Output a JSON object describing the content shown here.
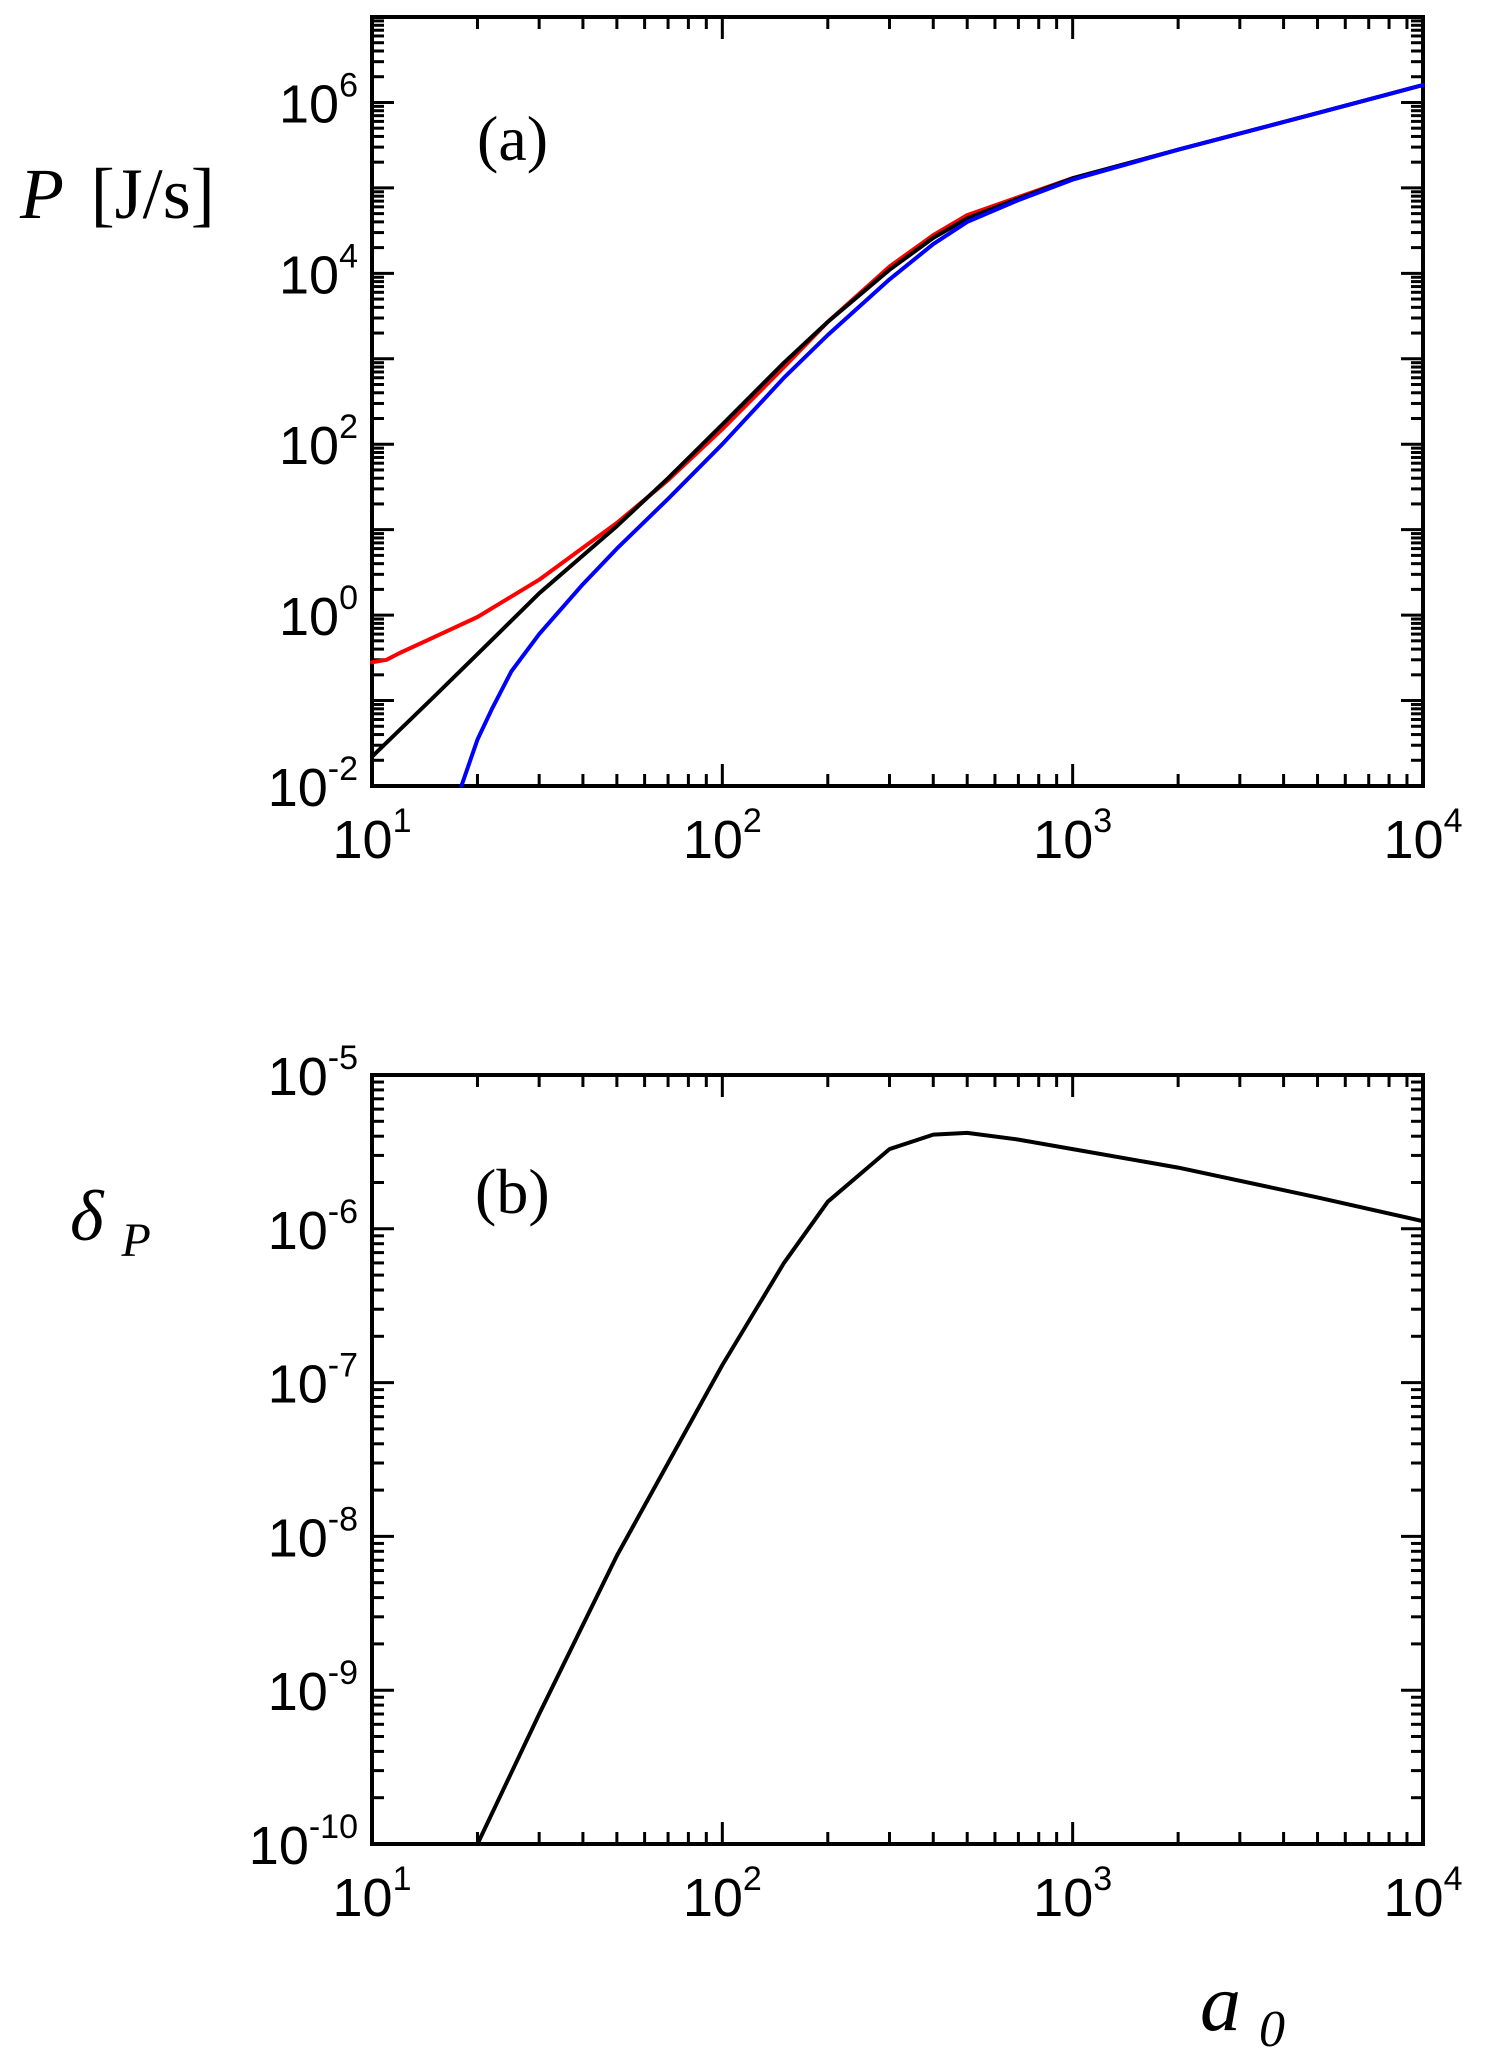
{
  "chart_data": [
    {
      "type": "line",
      "panel_label": "(a)",
      "ylabel": {
        "symbol": "P",
        "unit": "[J/s]"
      },
      "xlabel": "",
      "xscale": "log",
      "yscale": "log",
      "xlim": [
        10,
        10000
      ],
      "ylim": [
        0.01,
        10000000
      ],
      "x_ticks": [
        {
          "base": "10",
          "exp": "1"
        },
        {
          "base": "10",
          "exp": "2"
        },
        {
          "base": "10",
          "exp": "3"
        },
        {
          "base": "10",
          "exp": "4"
        }
      ],
      "y_ticks": [
        {
          "base": "10",
          "exp": "-2"
        },
        {
          "base": "10",
          "exp": "0"
        },
        {
          "base": "10",
          "exp": "2"
        },
        {
          "base": "10",
          "exp": "4"
        },
        {
          "base": "10",
          "exp": "6"
        }
      ],
      "series": [
        {
          "color": "#ff0000",
          "points": [
            [
              10,
              0.28
            ],
            [
              11,
              0.3
            ],
            [
              12,
              0.36
            ],
            [
              15,
              0.55
            ],
            [
              20,
              0.95
            ],
            [
              30,
              2.6
            ],
            [
              50,
              12
            ],
            [
              70,
              38
            ],
            [
              100,
              150
            ],
            [
              150,
              800
            ],
            [
              200,
              2700
            ],
            [
              300,
              12000
            ],
            [
              400,
              28000
            ],
            [
              500,
              48000
            ],
            [
              700,
              78000
            ],
            [
              1000,
              130000
            ],
            [
              2000,
              280000
            ],
            [
              5000,
              750000
            ],
            [
              10000,
              1600000
            ]
          ]
        },
        {
          "color": "#000000",
          "points": [
            [
              10,
              0.022
            ],
            [
              15,
              0.11
            ],
            [
              20,
              0.35
            ],
            [
              30,
              1.8
            ],
            [
              50,
              11
            ],
            [
              70,
              40
            ],
            [
              100,
              170
            ],
            [
              150,
              900
            ],
            [
              200,
              2700
            ],
            [
              300,
              11000
            ],
            [
              400,
              26000
            ],
            [
              500,
              44000
            ],
            [
              700,
              75000
            ],
            [
              1000,
              130000
            ],
            [
              2000,
              280000
            ],
            [
              5000,
              750000
            ],
            [
              10000,
              1600000
            ]
          ]
        },
        {
          "color": "#0000ff",
          "points": [
            [
              18,
              0.01
            ],
            [
              20,
              0.035
            ],
            [
              22,
              0.08
            ],
            [
              25,
              0.22
            ],
            [
              30,
              0.6
            ],
            [
              40,
              2.3
            ],
            [
              50,
              6
            ],
            [
              70,
              23
            ],
            [
              100,
              100
            ],
            [
              150,
              600
            ],
            [
              200,
              1900
            ],
            [
              300,
              8500
            ],
            [
              400,
              22000
            ],
            [
              500,
              40000
            ],
            [
              700,
              72000
            ],
            [
              1000,
              125000
            ],
            [
              2000,
              280000
            ],
            [
              5000,
              750000
            ],
            [
              10000,
              1600000
            ]
          ]
        }
      ]
    },
    {
      "type": "line",
      "panel_label": "(b)",
      "ylabel": {
        "symbol": "δ",
        "sub": "P"
      },
      "xlabel": {
        "symbol": "a",
        "sub": "0"
      },
      "xscale": "log",
      "yscale": "log",
      "xlim": [
        10,
        10000
      ],
      "ylim": [
        1e-10,
        1e-05
      ],
      "x_ticks": [
        {
          "base": "10",
          "exp": "1"
        },
        {
          "base": "10",
          "exp": "2"
        },
        {
          "base": "10",
          "exp": "3"
        },
        {
          "base": "10",
          "exp": "4"
        }
      ],
      "y_ticks": [
        {
          "base": "10",
          "exp": "-10"
        },
        {
          "base": "10",
          "exp": "-9"
        },
        {
          "base": "10",
          "exp": "-8"
        },
        {
          "base": "10",
          "exp": "-7"
        },
        {
          "base": "10",
          "exp": "-6"
        },
        {
          "base": "10",
          "exp": "-5"
        }
      ],
      "series": [
        {
          "color": "#000000",
          "points": [
            [
              20,
              1e-10
            ],
            [
              30,
              7e-10
            ],
            [
              50,
              7.5e-09
            ],
            [
              70,
              3e-08
            ],
            [
              100,
              1.3e-07
            ],
            [
              150,
              6e-07
            ],
            [
              200,
              1.5e-06
            ],
            [
              300,
              3.3e-06
            ],
            [
              400,
              4.1e-06
            ],
            [
              500,
              4.2e-06
            ],
            [
              700,
              3.8e-06
            ],
            [
              1000,
              3.3e-06
            ],
            [
              2000,
              2.5e-06
            ],
            [
              5000,
              1.6e-06
            ],
            [
              10000,
              1.12e-06
            ]
          ]
        }
      ]
    }
  ]
}
